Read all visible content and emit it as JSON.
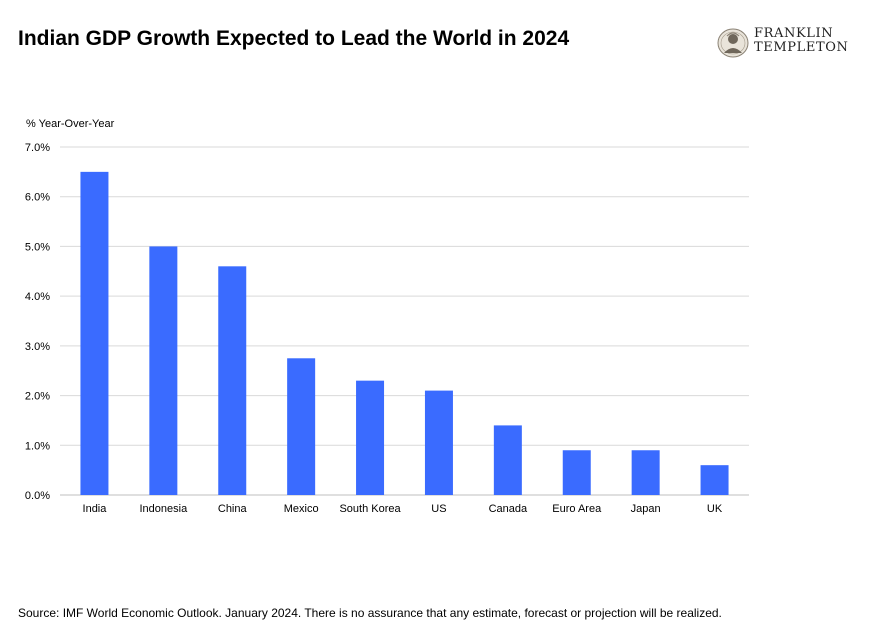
{
  "header": {
    "title": "Indian GDP Growth Expected to Lead the World in 2024"
  },
  "logo": {
    "line1": "FRANKLIN",
    "line2": "TEMPLETON",
    "icon": "franklin-portrait-seal"
  },
  "footer": {
    "source": "Source: IMF World Economic Outlook. January 2024. There is no assurance that any estimate, forecast or projection will be realized."
  },
  "colors": {
    "bar": "#3a6bff",
    "grid": "#d9d9d9",
    "axis": "#bfbfbf"
  },
  "chart_data": {
    "type": "bar",
    "title": "Indian GDP Growth Expected to Lead the World in 2024",
    "ylabel": "% Year-Over-Year",
    "xlabel": "",
    "ylim": [
      0,
      7
    ],
    "yticks": [
      "0.0%",
      "1.0%",
      "2.0%",
      "3.0%",
      "4.0%",
      "5.0%",
      "6.0%",
      "7.0%"
    ],
    "grid": true,
    "legend": "none",
    "categories": [
      "India",
      "Indonesia",
      "China",
      "Mexico",
      "South Korea",
      "US",
      "Canada",
      "Euro Area",
      "Japan",
      "UK"
    ],
    "values": [
      6.5,
      5.0,
      4.6,
      2.75,
      2.3,
      2.1,
      1.4,
      0.9,
      0.9,
      0.6
    ]
  }
}
